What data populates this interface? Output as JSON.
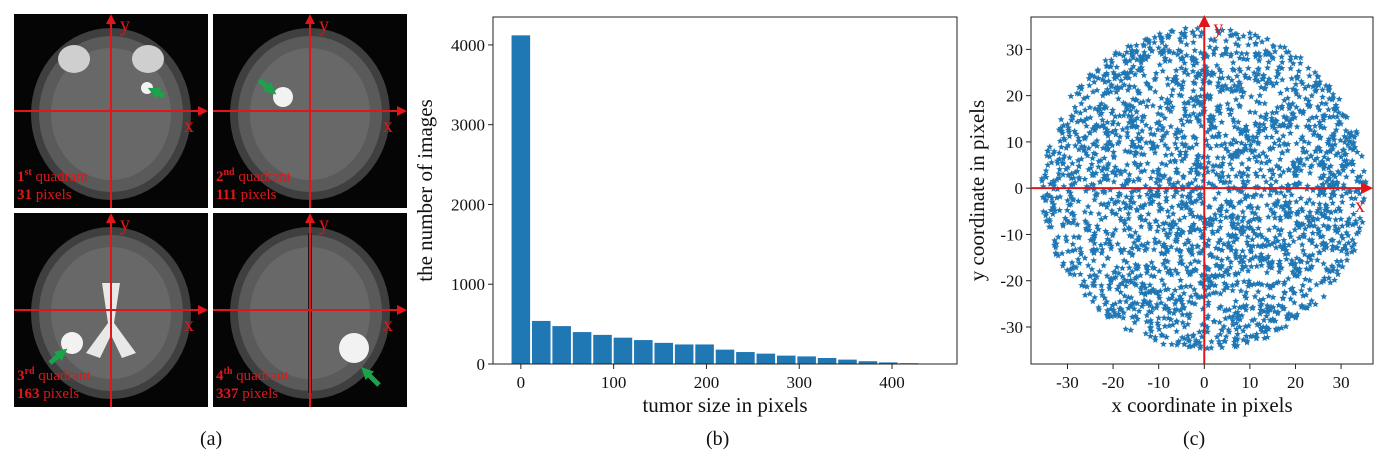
{
  "panel_labels": [
    "(a)",
    "(b)",
    "(c)"
  ],
  "panel_a": {
    "images": [
      {
        "ordinal": "1",
        "ordinal_sup": "st",
        "quadrant_word": " quadrant",
        "size": "31",
        "size_unit": " pixels",
        "x_label": "x",
        "y_label": "y"
      },
      {
        "ordinal": "2",
        "ordinal_sup": "nd",
        "quadrant_word": " quadrant",
        "size": "111",
        "size_unit": " pixels",
        "x_label": "x",
        "y_label": "y"
      },
      {
        "ordinal": "3",
        "ordinal_sup": "rd",
        "quadrant_word": " quadrant",
        "size": "163",
        "size_unit": " pixels",
        "x_label": "x",
        "y_label": "y"
      },
      {
        "ordinal": "4",
        "ordinal_sup": "th",
        "quadrant_word": " quadrant",
        "size": "337",
        "size_unit": " pixels",
        "x_label": "x",
        "y_label": "y"
      }
    ],
    "colors": {
      "axis": "#e0161b",
      "arrow": "#1aa34a",
      "tumor": "#f2f2f2"
    }
  },
  "chart_data": [
    {
      "type": "bar",
      "xlabel": "tumor size in pixels",
      "ylabel": "the number of images",
      "x": [
        0,
        22,
        44,
        66,
        88,
        110,
        132,
        154,
        176,
        198,
        220,
        242,
        264,
        286,
        308,
        330,
        352,
        374,
        396,
        418
      ],
      "values": [
        4120,
        540,
        475,
        400,
        365,
        330,
        300,
        265,
        245,
        245,
        180,
        150,
        130,
        105,
        95,
        75,
        55,
        35,
        20,
        10
      ],
      "xticks": [
        0,
        100,
        200,
        300,
        400
      ],
      "yticks": [
        0,
        1000,
        2000,
        3000,
        4000
      ],
      "xlim": [
        -30,
        470
      ],
      "ylim": [
        0,
        4350
      ],
      "color": "#1f77b4"
    },
    {
      "type": "scatter",
      "xlabel": "x coordinate in pixels",
      "ylabel": "y coordinate in pixels",
      "xticks": [
        -30,
        -20,
        -10,
        0,
        10,
        20,
        30
      ],
      "yticks": [
        -30,
        -20,
        -10,
        0,
        10,
        20,
        30
      ],
      "xlim": [
        -38,
        37
      ],
      "ylim": [
        -38,
        37
      ],
      "marker": "star",
      "color": "#1f77b4",
      "axis_labels_in_plot": {
        "x": "x",
        "y": "y"
      },
      "axis_color": "#e0161b",
      "point_cloud_radius": 35
    }
  ]
}
